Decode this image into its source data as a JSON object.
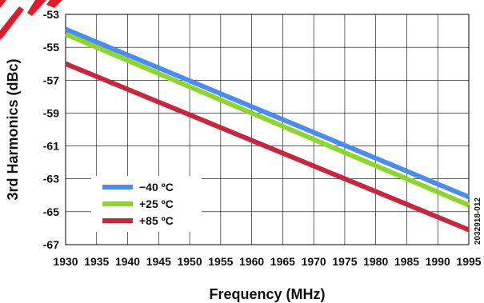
{
  "chart_data": {
    "type": "line",
    "xlabel": "Frequency (MHz)",
    "ylabel": "3rd Harmonics (dBc)",
    "xlim": [
      1930,
      1995
    ],
    "ylim": [
      -67,
      -53
    ],
    "x_ticks": [
      "1930",
      "1935",
      "1940",
      "1945",
      "1950",
      "1955",
      "1960",
      "1965",
      "1970",
      "1975",
      "1980",
      "1985",
      "1990",
      "1995"
    ],
    "y_ticks": [
      "-53",
      "-55",
      "-57",
      "-59",
      "-61",
      "-63",
      "-65",
      "-67"
    ],
    "grid": true,
    "legend_position": "lower-left",
    "figure_id": "2032918-012",
    "series": [
      {
        "name": "−40 ºC",
        "color": "#4a8cf0",
        "x": [
          1930,
          1995
        ],
        "y": [
          -53.9,
          -64.1
        ]
      },
      {
        "name": "+25 ºC",
        "color": "#8ed62c",
        "x": [
          1930,
          1995
        ],
        "y": [
          -54.2,
          -64.6
        ]
      },
      {
        "name": "+85 ºC",
        "color": "#c8263f",
        "x": [
          1930,
          1995
        ],
        "y": [
          -56.0,
          -66.1
        ]
      }
    ]
  }
}
